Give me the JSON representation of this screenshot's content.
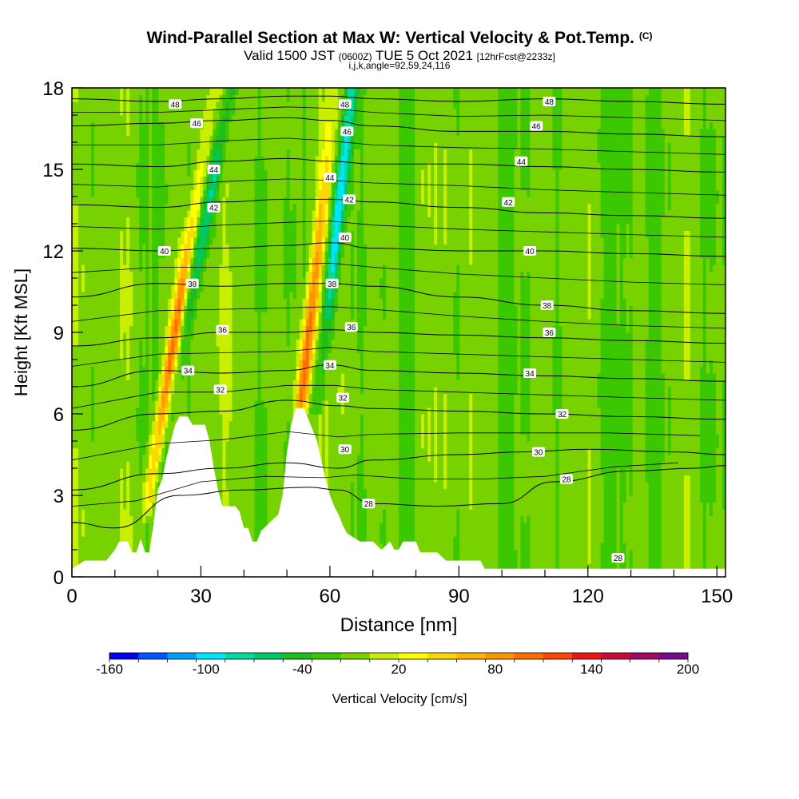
{
  "title": {
    "main": "Wind-Parallel Section at Max W: Vertical Velocity & Pot.Temp.",
    "copyright": "(C)",
    "valid_prefix": "Valid 1500 JST",
    "valid_utc": "(0600Z)",
    "valid_date": "TUE 5 Oct 2021",
    "forecast": "[12hrFcst@2233z]",
    "section_params": "i,j,k,angle=92,59,24,116"
  },
  "chart_data": {
    "type": "heatmap",
    "xlabel": "Distance [nm]",
    "ylabel": "Height [Kft MSL]",
    "xlim": [
      0,
      152
    ],
    "ylim": [
      0,
      18
    ],
    "x_ticks": [
      0,
      30,
      60,
      90,
      120,
      150
    ],
    "y_ticks": [
      0,
      3,
      6,
      9,
      12,
      15,
      18
    ],
    "colorbar": {
      "label": "Vertical Velocity [cm/s]",
      "min": -160,
      "max": 200,
      "step": 20,
      "tick_labels": [
        -160,
        -100,
        -40,
        20,
        80,
        140,
        200
      ],
      "colors": [
        "#0000ee",
        "#0055ff",
        "#00a0ff",
        "#00e5ff",
        "#00dca0",
        "#00c864",
        "#1ebe1e",
        "#3cc800",
        "#78d200",
        "#c8ee00",
        "#ffff00",
        "#ffd700",
        "#ffb400",
        "#ff9600",
        "#ff6e00",
        "#ff4600",
        "#ee1414",
        "#c80a3c",
        "#a00a64",
        "#780a8c"
      ]
    },
    "terrain": [
      [
        0,
        0.3
      ],
      [
        3,
        0.6
      ],
      [
        8,
        0.6
      ],
      [
        10,
        1.0
      ],
      [
        11,
        1.3
      ],
      [
        13,
        1.3
      ],
      [
        14,
        0.9
      ],
      [
        15,
        0.9
      ],
      [
        16,
        1.4
      ],
      [
        17,
        0.9
      ],
      [
        18,
        0.9
      ],
      [
        19,
        2.0
      ],
      [
        20,
        3.2
      ],
      [
        21,
        3.6
      ],
      [
        22,
        4.4
      ],
      [
        23,
        5.0
      ],
      [
        24,
        5.6
      ],
      [
        25,
        5.9
      ],
      [
        27,
        5.9
      ],
      [
        28,
        5.6
      ],
      [
        31,
        5.6
      ],
      [
        32,
        5.0
      ],
      [
        33,
        4.0
      ],
      [
        34,
        3.2
      ],
      [
        35,
        2.6
      ],
      [
        38,
        2.6
      ],
      [
        39,
        2.4
      ],
      [
        40,
        1.8
      ],
      [
        41,
        1.8
      ],
      [
        42,
        1.3
      ],
      [
        43,
        1.3
      ],
      [
        44,
        1.7
      ],
      [
        46,
        2.0
      ],
      [
        48,
        2.3
      ],
      [
        49,
        3.0
      ],
      [
        50,
        4.6
      ],
      [
        51,
        5.6
      ],
      [
        52,
        6.2
      ],
      [
        54,
        6.2
      ],
      [
        55,
        5.8
      ],
      [
        56,
        5.4
      ],
      [
        57,
        5.0
      ],
      [
        58,
        4.3
      ],
      [
        59,
        3.6
      ],
      [
        60,
        3.0
      ],
      [
        61,
        2.6
      ],
      [
        62,
        2.3
      ],
      [
        63,
        1.9
      ],
      [
        64,
        1.6
      ],
      [
        67,
        1.3
      ],
      [
        70,
        1.3
      ],
      [
        72,
        1.0
      ],
      [
        74,
        1.3
      ],
      [
        75,
        1.0
      ],
      [
        76,
        1.0
      ],
      [
        77,
        1.3
      ],
      [
        80,
        1.3
      ],
      [
        81,
        0.9
      ],
      [
        85,
        0.9
      ],
      [
        87,
        0.6
      ],
      [
        95,
        0.6
      ],
      [
        96,
        0.3
      ],
      [
        152,
        0.3
      ]
    ],
    "series": [
      {
        "name": "28",
        "values": [
          [
            0,
            2.0
          ],
          [
            10,
            1.8
          ],
          [
            25,
            3.0
          ],
          [
            40,
            3.2
          ],
          [
            55,
            3.3
          ],
          [
            62,
            3.2
          ],
          [
            70,
            2.7
          ],
          [
            85,
            2.6
          ],
          [
            100,
            2.7
          ],
          [
            112,
            3.5
          ],
          [
            130,
            3.9
          ],
          [
            145,
            4.0
          ],
          [
            152,
            4.1
          ]
        ]
      },
      {
        "name": "30",
        "values": [
          [
            0,
            3.2
          ],
          [
            20,
            3.8
          ],
          [
            35,
            4.0
          ],
          [
            50,
            4.2
          ],
          [
            62,
            4.0
          ],
          [
            70,
            4.3
          ],
          [
            90,
            4.5
          ],
          [
            105,
            4.6
          ],
          [
            120,
            4.7
          ],
          [
            140,
            4.6
          ],
          [
            152,
            4.5
          ]
        ]
      },
      {
        "name": "32",
        "values": [
          [
            0,
            5.4
          ],
          [
            20,
            6.0
          ],
          [
            35,
            6.1
          ],
          [
            50,
            6.5
          ],
          [
            62,
            6.3
          ],
          [
            70,
            6.2
          ],
          [
            90,
            6.1
          ],
          [
            110,
            6.0
          ],
          [
            130,
            5.9
          ],
          [
            152,
            5.8
          ]
        ]
      },
      {
        "name": "34",
        "values": [
          [
            0,
            7.0
          ],
          [
            20,
            7.6
          ],
          [
            35,
            7.5
          ],
          [
            50,
            7.6
          ],
          [
            60,
            7.8
          ],
          [
            70,
            7.6
          ],
          [
            90,
            7.5
          ],
          [
            110,
            7.4
          ],
          [
            130,
            7.3
          ],
          [
            152,
            7.2
          ]
        ]
      },
      {
        "name": "36",
        "values": [
          [
            0,
            8.5
          ],
          [
            20,
            8.8
          ],
          [
            35,
            9.0
          ],
          [
            50,
            9.0
          ],
          [
            60,
            9.1
          ],
          [
            70,
            9.0
          ],
          [
            90,
            8.9
          ],
          [
            110,
            8.8
          ],
          [
            130,
            8.7
          ],
          [
            152,
            8.6
          ]
        ]
      },
      {
        "name": "38",
        "values": [
          [
            0,
            10.3
          ],
          [
            20,
            10.8
          ],
          [
            35,
            10.7
          ],
          [
            50,
            10.8
          ],
          [
            60,
            10.8
          ],
          [
            70,
            10.7
          ],
          [
            90,
            10.3
          ],
          [
            110,
            10.0
          ],
          [
            130,
            9.8
          ],
          [
            152,
            9.7
          ]
        ]
      },
      {
        "name": "40",
        "values": [
          [
            0,
            12.1
          ],
          [
            20,
            12.0
          ],
          [
            35,
            12.1
          ],
          [
            50,
            12.2
          ],
          [
            60,
            12.3
          ],
          [
            70,
            12.1
          ],
          [
            90,
            12.0
          ],
          [
            110,
            12.0
          ],
          [
            130,
            11.9
          ],
          [
            152,
            11.8
          ]
        ]
      },
      {
        "name": "42",
        "values": [
          [
            0,
            13.7
          ],
          [
            20,
            13.6
          ],
          [
            35,
            13.8
          ],
          [
            50,
            13.9
          ],
          [
            60,
            13.9
          ],
          [
            70,
            13.8
          ],
          [
            90,
            13.6
          ],
          [
            110,
            13.4
          ],
          [
            130,
            13.3
          ],
          [
            152,
            13.2
          ]
        ]
      },
      {
        "name": "44",
        "values": [
          [
            0,
            15.2
          ],
          [
            20,
            15.1
          ],
          [
            35,
            15.3
          ],
          [
            50,
            15.4
          ],
          [
            60,
            15.3
          ],
          [
            70,
            15.2
          ],
          [
            90,
            15.2
          ],
          [
            110,
            15.1
          ],
          [
            130,
            15.0
          ],
          [
            152,
            14.9
          ]
        ]
      },
      {
        "name": "46",
        "values": [
          [
            0,
            16.6
          ],
          [
            20,
            16.7
          ],
          [
            35,
            16.8
          ],
          [
            50,
            16.9
          ],
          [
            60,
            16.8
          ],
          [
            70,
            16.6
          ],
          [
            90,
            16.4
          ],
          [
            110,
            16.4
          ],
          [
            130,
            16.3
          ],
          [
            152,
            16.2
          ]
        ]
      },
      {
        "name": "48",
        "values": [
          [
            0,
            17.6
          ],
          [
            20,
            17.5
          ],
          [
            35,
            17.6
          ],
          [
            50,
            17.7
          ],
          [
            60,
            17.7
          ],
          [
            70,
            17.6
          ],
          [
            90,
            17.5
          ],
          [
            110,
            17.6
          ],
          [
            130,
            17.5
          ],
          [
            152,
            17.4
          ]
        ]
      }
    ],
    "contour_labels": [
      {
        "text": "48",
        "x": 24,
        "y": 17.4
      },
      {
        "text": "46",
        "x": 29,
        "y": 16.7
      },
      {
        "text": "44",
        "x": 33,
        "y": 15.0
      },
      {
        "text": "42",
        "x": 33,
        "y": 13.6
      },
      {
        "text": "40",
        "x": 21.5,
        "y": 12.0
      },
      {
        "text": "38",
        "x": 28,
        "y": 10.8
      },
      {
        "text": "36",
        "x": 35,
        "y": 9.1
      },
      {
        "text": "34",
        "x": 27,
        "y": 7.6
      },
      {
        "text": "32",
        "x": 34.5,
        "y": 6.9
      },
      {
        "text": "48",
        "x": 63.5,
        "y": 17.4
      },
      {
        "text": "46",
        "x": 64,
        "y": 16.4
      },
      {
        "text": "44",
        "x": 60,
        "y": 14.7
      },
      {
        "text": "42",
        "x": 64.5,
        "y": 13.9
      },
      {
        "text": "40",
        "x": 63.5,
        "y": 12.5
      },
      {
        "text": "38",
        "x": 60.5,
        "y": 10.8
      },
      {
        "text": "36",
        "x": 65,
        "y": 9.2
      },
      {
        "text": "34",
        "x": 60,
        "y": 7.8
      },
      {
        "text": "32",
        "x": 63,
        "y": 6.6
      },
      {
        "text": "30",
        "x": 63.5,
        "y": 4.7
      },
      {
        "text": "28",
        "x": 69,
        "y": 2.7
      },
      {
        "text": "48",
        "x": 111,
        "y": 17.5
      },
      {
        "text": "46",
        "x": 108,
        "y": 16.6
      },
      {
        "text": "44",
        "x": 104.5,
        "y": 15.3
      },
      {
        "text": "42",
        "x": 101.5,
        "y": 13.8
      },
      {
        "text": "40",
        "x": 106.5,
        "y": 12.0
      },
      {
        "text": "38",
        "x": 110.5,
        "y": 10.0
      },
      {
        "text": "36",
        "x": 111,
        "y": 9.0
      },
      {
        "text": "34",
        "x": 106.5,
        "y": 7.5
      },
      {
        "text": "32",
        "x": 114,
        "y": 6.0
      },
      {
        "text": "30",
        "x": 108.5,
        "y": 4.6
      },
      {
        "text": "28",
        "x": 115,
        "y": 3.6
      },
      {
        "text": "28",
        "x": 127,
        "y": 0.7
      }
    ],
    "updraft_cores": [
      {
        "x_bottom": 17,
        "x_top": 33,
        "y_bottom": 2.0,
        "peak": 120
      },
      {
        "x_bottom": 53,
        "x_top": 61,
        "y_bottom": 5.8,
        "peak": 130
      }
    ],
    "downdraft_cores": [
      {
        "x_bottom": 19,
        "x_top": 37,
        "y_bottom": 3.0,
        "peak": -60
      },
      {
        "x_bottom": 57,
        "x_top": 65,
        "y_bottom": 6.0,
        "peak": -100
      }
    ]
  }
}
